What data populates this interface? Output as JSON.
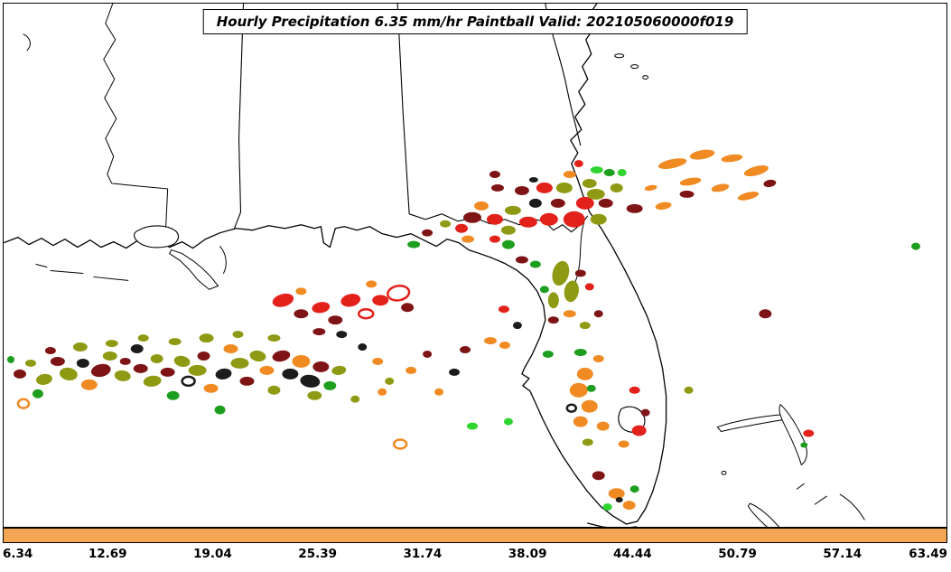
{
  "title": "Hourly Precipitation 6.35 mm/hr Paintball Valid: 202105060000f019",
  "colorbar": {
    "fill_color": "#F2A553",
    "ticks": [
      "6.34",
      "12.69",
      "19.04",
      "25.39",
      "31.74",
      "38.09",
      "44.44",
      "50.79",
      "57.14",
      "63.49"
    ]
  },
  "palette": {
    "r": "#E3211B",
    "d": "#7E1416",
    "o": "#F08A23",
    "v": "#8E9A13",
    "g": "#1E9E1E",
    "G": "#2FD42F",
    "k": "#1C1C1C"
  },
  "blob_fields": [
    "x",
    "y",
    "rx",
    "ry",
    "rotation_deg",
    "color_key",
    "hollow"
  ],
  "blobs": [
    [
      8,
      396,
      4,
      4,
      0,
      "g",
      0
    ],
    [
      18,
      412,
      7,
      5,
      0,
      "d",
      0
    ],
    [
      30,
      400,
      6,
      4,
      0,
      "v",
      0
    ],
    [
      45,
      418,
      9,
      6,
      -10,
      "v",
      0
    ],
    [
      38,
      434,
      6,
      5,
      0,
      "g",
      0
    ],
    [
      22,
      445,
      6,
      5,
      0,
      "o",
      1
    ],
    [
      52,
      386,
      6,
      4,
      0,
      "d",
      0
    ],
    [
      60,
      398,
      8,
      5,
      0,
      "d",
      0
    ],
    [
      72,
      412,
      10,
      7,
      10,
      "v",
      0
    ],
    [
      85,
      382,
      8,
      5,
      0,
      "v",
      0
    ],
    [
      88,
      400,
      7,
      5,
      0,
      "k",
      0
    ],
    [
      95,
      424,
      9,
      6,
      0,
      "o",
      0
    ],
    [
      108,
      408,
      11,
      7,
      -12,
      "d",
      0
    ],
    [
      118,
      392,
      8,
      5,
      0,
      "v",
      0
    ],
    [
      120,
      378,
      7,
      4,
      0,
      "v",
      0
    ],
    [
      132,
      414,
      9,
      6,
      8,
      "v",
      0
    ],
    [
      135,
      398,
      6,
      4,
      0,
      "d",
      0
    ],
    [
      148,
      384,
      7,
      5,
      0,
      "k",
      0
    ],
    [
      152,
      406,
      8,
      5,
      0,
      "d",
      0
    ],
    [
      155,
      372,
      6,
      4,
      0,
      "v",
      0
    ],
    [
      165,
      420,
      10,
      6,
      -8,
      "v",
      0
    ],
    [
      170,
      395,
      7,
      5,
      0,
      "v",
      0
    ],
    [
      182,
      410,
      8,
      5,
      0,
      "d",
      0
    ],
    [
      188,
      436,
      7,
      5,
      0,
      "g",
      0
    ],
    [
      190,
      376,
      7,
      4,
      0,
      "v",
      0
    ],
    [
      198,
      398,
      9,
      6,
      12,
      "v",
      0
    ],
    [
      205,
      420,
      7,
      5,
      0,
      "k",
      1
    ],
    [
      215,
      408,
      10,
      6,
      0,
      "v",
      0
    ],
    [
      222,
      392,
      7,
      5,
      0,
      "d",
      0
    ],
    [
      225,
      372,
      8,
      5,
      0,
      "v",
      0
    ],
    [
      230,
      428,
      8,
      5,
      0,
      "o",
      0
    ],
    [
      240,
      452,
      6,
      5,
      0,
      "g",
      0
    ],
    [
      244,
      412,
      9,
      6,
      -10,
      "k",
      0
    ],
    [
      252,
      384,
      8,
      5,
      0,
      "o",
      0
    ],
    [
      260,
      368,
      6,
      4,
      0,
      "v",
      0
    ],
    [
      262,
      400,
      10,
      6,
      0,
      "v",
      0
    ],
    [
      270,
      420,
      8,
      5,
      0,
      "d",
      0
    ],
    [
      282,
      392,
      9,
      6,
      10,
      "v",
      0
    ],
    [
      292,
      408,
      8,
      5,
      0,
      "o",
      0
    ],
    [
      300,
      372,
      7,
      4,
      0,
      "v",
      0
    ],
    [
      300,
      430,
      7,
      5,
      0,
      "v",
      0
    ],
    [
      308,
      392,
      10,
      6,
      -12,
      "d",
      0
    ],
    [
      318,
      412,
      9,
      6,
      0,
      "k",
      0
    ],
    [
      330,
      398,
      10,
      7,
      0,
      "o",
      0
    ],
    [
      340,
      420,
      11,
      7,
      8,
      "k",
      0
    ],
    [
      345,
      436,
      8,
      5,
      0,
      "v",
      0
    ],
    [
      352,
      404,
      9,
      6,
      0,
      "d",
      0
    ],
    [
      362,
      425,
      7,
      5,
      0,
      "g",
      0
    ],
    [
      372,
      408,
      8,
      5,
      -8,
      "v",
      0
    ],
    [
      390,
      440,
      5,
      4,
      0,
      "v",
      0
    ],
    [
      398,
      382,
      5,
      4,
      0,
      "k",
      0
    ],
    [
      415,
      398,
      6,
      4,
      0,
      "o",
      0
    ],
    [
      420,
      432,
      5,
      4,
      0,
      "o",
      0
    ],
    [
      428,
      420,
      5,
      4,
      0,
      "v",
      0
    ],
    [
      452,
      408,
      6,
      4,
      0,
      "o",
      0
    ],
    [
      470,
      390,
      5,
      4,
      0,
      "d",
      0
    ],
    [
      483,
      432,
      5,
      4,
      0,
      "o",
      0
    ],
    [
      500,
      410,
      6,
      4,
      0,
      "k",
      0
    ],
    [
      512,
      385,
      6,
      4,
      0,
      "d",
      0
    ],
    [
      310,
      330,
      12,
      7,
      -15,
      "r",
      0
    ],
    [
      330,
      320,
      6,
      4,
      0,
      "o",
      0
    ],
    [
      330,
      345,
      8,
      5,
      0,
      "d",
      0
    ],
    [
      352,
      338,
      10,
      6,
      -10,
      "r",
      0
    ],
    [
      350,
      365,
      7,
      4,
      0,
      "d",
      0
    ],
    [
      368,
      352,
      8,
      5,
      0,
      "d",
      0
    ],
    [
      375,
      368,
      6,
      4,
      0,
      "k",
      0
    ],
    [
      385,
      330,
      11,
      7,
      -12,
      "r",
      0
    ],
    [
      402,
      345,
      8,
      5,
      0,
      "r",
      1
    ],
    [
      408,
      312,
      6,
      4,
      0,
      "o",
      0
    ],
    [
      418,
      330,
      9,
      6,
      0,
      "r",
      0
    ],
    [
      438,
      322,
      12,
      8,
      -10,
      "r",
      1
    ],
    [
      448,
      338,
      7,
      5,
      0,
      "d",
      0
    ],
    [
      455,
      268,
      7,
      4,
      0,
      "g",
      0
    ],
    [
      470,
      255,
      6,
      4,
      0,
      "d",
      0
    ],
    [
      490,
      245,
      6,
      4,
      0,
      "v",
      0
    ],
    [
      508,
      250,
      7,
      5,
      0,
      "r",
      0
    ],
    [
      515,
      262,
      7,
      4,
      0,
      "o",
      0
    ],
    [
      520,
      238,
      10,
      6,
      0,
      "d",
      0
    ],
    [
      530,
      225,
      8,
      5,
      0,
      "o",
      0
    ],
    [
      545,
      190,
      6,
      4,
      0,
      "d",
      0
    ],
    [
      545,
      240,
      9,
      6,
      0,
      "r",
      0
    ],
    [
      545,
      262,
      6,
      4,
      0,
      "r",
      0
    ],
    [
      548,
      205,
      7,
      4,
      0,
      "d",
      0
    ],
    [
      555,
      340,
      6,
      4,
      0,
      "r",
      0
    ],
    [
      556,
      380,
      6,
      4,
      0,
      "o",
      0
    ],
    [
      540,
      375,
      7,
      4,
      0,
      "o",
      0
    ],
    [
      560,
      252,
      8,
      5,
      0,
      "v",
      0
    ],
    [
      560,
      268,
      7,
      5,
      0,
      "g",
      0
    ],
    [
      565,
      230,
      9,
      5,
      0,
      "v",
      0
    ],
    [
      570,
      358,
      5,
      4,
      0,
      "k",
      0
    ],
    [
      575,
      208,
      8,
      5,
      0,
      "d",
      0
    ],
    [
      575,
      285,
      7,
      4,
      0,
      "d",
      0
    ],
    [
      582,
      243,
      10,
      6,
      0,
      "r",
      0
    ],
    [
      588,
      196,
      5,
      3,
      0,
      "k",
      0
    ],
    [
      590,
      222,
      7,
      5,
      0,
      "k",
      0
    ],
    [
      590,
      290,
      6,
      4,
      0,
      "g",
      0
    ],
    [
      600,
      205,
      9,
      6,
      0,
      "r",
      0
    ],
    [
      600,
      318,
      5,
      4,
      0,
      "g",
      0
    ],
    [
      605,
      240,
      10,
      7,
      0,
      "r",
      0
    ],
    [
      610,
      330,
      6,
      9,
      0,
      "v",
      0
    ],
    [
      610,
      352,
      6,
      4,
      0,
      "d",
      0
    ],
    [
      615,
      222,
      8,
      5,
      0,
      "d",
      0
    ],
    [
      618,
      300,
      9,
      14,
      15,
      "v",
      0
    ],
    [
      622,
      205,
      9,
      6,
      0,
      "v",
      0
    ],
    [
      628,
      190,
      7,
      4,
      0,
      "o",
      0
    ],
    [
      628,
      345,
      7,
      4,
      0,
      "o",
      0
    ],
    [
      630,
      320,
      8,
      12,
      10,
      "v",
      0
    ],
    [
      633,
      240,
      12,
      9,
      0,
      "r",
      0
    ],
    [
      638,
      178,
      5,
      4,
      0,
      "r",
      0
    ],
    [
      640,
      300,
      6,
      4,
      0,
      "d",
      0
    ],
    [
      645,
      222,
      10,
      7,
      0,
      "r",
      0
    ],
    [
      645,
      358,
      6,
      4,
      0,
      "v",
      0
    ],
    [
      650,
      200,
      8,
      5,
      0,
      "v",
      0
    ],
    [
      650,
      315,
      5,
      4,
      0,
      "r",
      0
    ],
    [
      657,
      212,
      10,
      6,
      0,
      "v",
      0
    ],
    [
      658,
      185,
      7,
      4,
      0,
      "G",
      0
    ],
    [
      660,
      240,
      9,
      6,
      0,
      "v",
      0
    ],
    [
      660,
      345,
      5,
      4,
      0,
      "d",
      0
    ],
    [
      668,
      222,
      8,
      5,
      0,
      "d",
      0
    ],
    [
      672,
      188,
      6,
      4,
      0,
      "g",
      0
    ],
    [
      680,
      205,
      7,
      5,
      0,
      "v",
      0
    ],
    [
      686,
      188,
      5,
      4,
      0,
      "G",
      0
    ],
    [
      700,
      228,
      9,
      5,
      0,
      "d",
      0
    ],
    [
      718,
      205,
      7,
      3,
      -10,
      "o",
      0
    ],
    [
      732,
      225,
      9,
      4,
      -10,
      "o",
      0
    ],
    [
      742,
      178,
      16,
      5,
      -12,
      "o",
      0
    ],
    [
      758,
      212,
      8,
      4,
      0,
      "d",
      0
    ],
    [
      762,
      198,
      12,
      4,
      -10,
      "o",
      0
    ],
    [
      775,
      168,
      14,
      5,
      -10,
      "o",
      0
    ],
    [
      795,
      205,
      10,
      4,
      -12,
      "o",
      0
    ],
    [
      808,
      172,
      12,
      4,
      -8,
      "o",
      0
    ],
    [
      826,
      214,
      12,
      4,
      -14,
      "o",
      0
    ],
    [
      835,
      186,
      14,
      5,
      -15,
      "o",
      0
    ],
    [
      850,
      200,
      7,
      4,
      -10,
      "d",
      0
    ],
    [
      604,
      390,
      6,
      4,
      0,
      "g",
      0
    ],
    [
      640,
      388,
      7,
      4,
      0,
      "g",
      0
    ],
    [
      660,
      395,
      6,
      4,
      0,
      "o",
      0
    ],
    [
      645,
      412,
      9,
      7,
      0,
      "o",
      0
    ],
    [
      638,
      430,
      10,
      8,
      0,
      "o",
      0
    ],
    [
      650,
      448,
      9,
      7,
      0,
      "o",
      0
    ],
    [
      640,
      465,
      8,
      6,
      0,
      "o",
      0
    ],
    [
      652,
      428,
      5,
      4,
      0,
      "g",
      0
    ],
    [
      630,
      450,
      5,
      4,
      0,
      "k",
      1
    ],
    [
      665,
      470,
      7,
      5,
      0,
      "o",
      0
    ],
    [
      648,
      488,
      6,
      4,
      0,
      "v",
      0
    ],
    [
      700,
      430,
      6,
      4,
      0,
      "r",
      0
    ],
    [
      705,
      475,
      8,
      6,
      0,
      "r",
      0
    ],
    [
      688,
      490,
      6,
      4,
      0,
      "o",
      0
    ],
    [
      712,
      455,
      5,
      4,
      0,
      "d",
      0
    ],
    [
      660,
      525,
      7,
      5,
      0,
      "d",
      0
    ],
    [
      680,
      545,
      9,
      6,
      0,
      "o",
      0
    ],
    [
      694,
      558,
      7,
      5,
      0,
      "o",
      0
    ],
    [
      683,
      552,
      4,
      3,
      0,
      "k",
      0
    ],
    [
      700,
      540,
      5,
      4,
      0,
      "g",
      0
    ],
    [
      670,
      560,
      5,
      4,
      0,
      "G",
      0
    ],
    [
      520,
      470,
      6,
      4,
      0,
      "G",
      0
    ],
    [
      560,
      465,
      5,
      4,
      0,
      "G",
      0
    ],
    [
      440,
      490,
      7,
      5,
      0,
      "o",
      1
    ],
    [
      760,
      430,
      5,
      4,
      0,
      "v",
      0
    ],
    [
      845,
      345,
      7,
      5,
      0,
      "d",
      0
    ],
    [
      893,
      478,
      6,
      4,
      0,
      "r",
      0
    ],
    [
      888,
      491,
      4,
      3,
      0,
      "g",
      0
    ],
    [
      1012,
      270,
      5,
      4,
      0,
      "g",
      0
    ]
  ]
}
